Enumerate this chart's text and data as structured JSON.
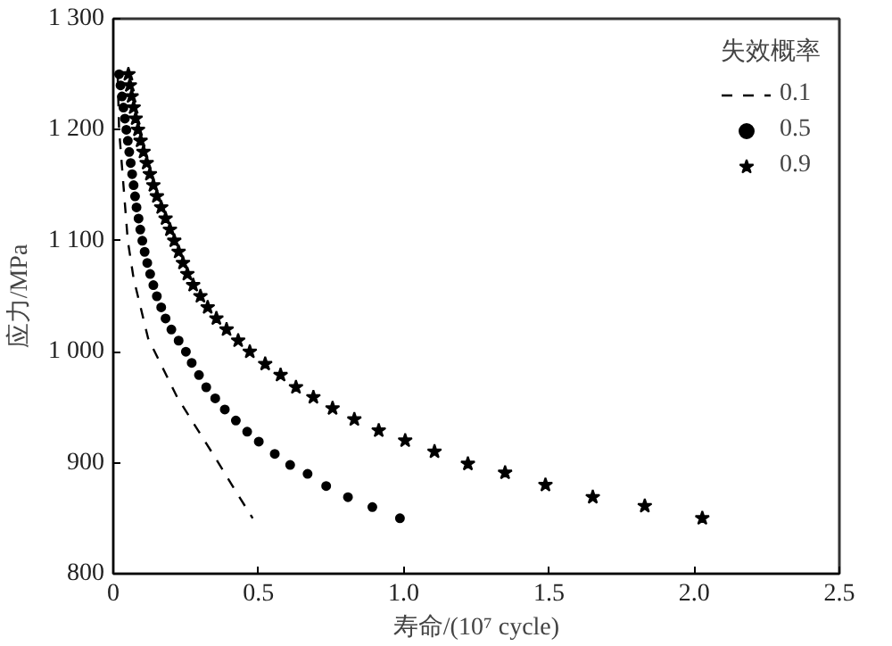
{
  "chart_data": {
    "type": "scatter",
    "xlabel": "寿命/(10⁷ cycle)",
    "ylabel": "应力/MPa",
    "legend_title": "失效概率",
    "legend": "top right",
    "grid": false,
    "xlim": [
      0,
      2.5
    ],
    "ylim": [
      800,
      1300
    ],
    "xticks": [
      0,
      0.5,
      {
        "value": 1.0,
        "label": "1.0"
      },
      1.5,
      {
        "value": 2.0,
        "label": "2.0"
      },
      2.5
    ],
    "yticks": [
      800,
      900,
      {
        "value": 1000,
        "label": "1 000"
      },
      {
        "value": 1100,
        "label": "1 100"
      },
      {
        "value": 1200,
        "label": "1 200"
      },
      {
        "value": 1300,
        "label": "1 300"
      }
    ],
    "series": [
      {
        "name": "0.1",
        "type": "line",
        "line_style": "dashed",
        "marker": "none",
        "color": "#000000",
        "x": [
          0.015,
          0.02,
          0.035,
          0.05,
          0.07,
          0.12,
          0.22,
          0.35,
          0.42,
          0.48
        ],
        "values": [
          1250,
          1200,
          1150,
          1100,
          1066,
          1012,
          959,
          905,
          875,
          850
        ]
      },
      {
        "name": "0.5",
        "marker": "circle",
        "color": "#000000",
        "x": [
          0.02,
          0.025,
          0.03,
          0.035,
          0.04,
          0.045,
          0.05,
          0.055,
          0.06,
          0.065,
          0.07,
          0.075,
          0.08,
          0.087,
          0.093,
          0.1,
          0.108,
          0.117,
          0.127,
          0.138,
          0.15,
          0.165,
          0.18,
          0.2,
          0.225,
          0.25,
          0.27,
          0.295,
          0.32,
          0.351,
          0.384,
          0.422,
          0.461,
          0.501,
          0.556,
          0.609,
          0.669,
          0.733,
          0.808,
          0.892,
          0.987
        ],
        "values": [
          1250,
          1240,
          1230,
          1220,
          1210,
          1200,
          1190,
          1180,
          1170,
          1160,
          1150,
          1140,
          1130,
          1120,
          1110,
          1100,
          1090,
          1080,
          1070,
          1060,
          1050,
          1040,
          1030,
          1020,
          1010,
          1000,
          990,
          979,
          968,
          958,
          948,
          938,
          928,
          919,
          908,
          898,
          890,
          879,
          869,
          860,
          850
        ]
      },
      {
        "name": "0.9",
        "marker": "star",
        "color": "#000000",
        "x": [
          0.052,
          0.057,
          0.063,
          0.07,
          0.077,
          0.085,
          0.094,
          0.104,
          0.115,
          0.126,
          0.138,
          0.15,
          0.165,
          0.18,
          0.195,
          0.21,
          0.225,
          0.24,
          0.255,
          0.275,
          0.3,
          0.325,
          0.355,
          0.39,
          0.43,
          0.47,
          0.523,
          0.576,
          0.629,
          0.689,
          0.755,
          0.83,
          0.914,
          1.005,
          1.106,
          1.221,
          1.349,
          1.488,
          1.651,
          1.83,
          2.028
        ],
        "values": [
          1250,
          1240,
          1230,
          1220,
          1210,
          1200,
          1190,
          1180,
          1170,
          1160,
          1150,
          1140,
          1130,
          1120,
          1110,
          1100,
          1090,
          1080,
          1070,
          1060,
          1050,
          1040,
          1030,
          1020,
          1010,
          1000,
          989,
          979,
          968,
          959,
          949,
          939,
          929,
          920,
          910,
          899,
          891,
          880,
          869,
          861,
          850
        ]
      }
    ]
  }
}
